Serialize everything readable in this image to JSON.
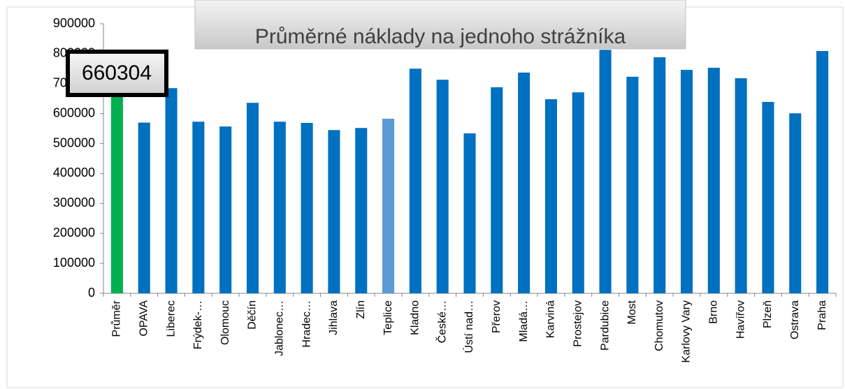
{
  "chart_data": {
    "type": "bar",
    "title": "Průměrné náklady na jednoho strážníka",
    "categories": [
      "Průměr",
      "OPAVA",
      "Liberec",
      "Frýdek-…",
      "Olomouc",
      "Děčín",
      "Jablonec…",
      "Hradec…",
      "Jihlava",
      "Zlín",
      "Teplice",
      "Kladno",
      "České…",
      "Ústí nad…",
      "Přerov",
      "Mladá…",
      "Karviná",
      "Prostejov",
      "Pardubice",
      "Most",
      "Chomutov",
      "Karlovy Vary",
      "Brno",
      "Havířov",
      "Plzeň",
      "Ostrava",
      "Praha"
    ],
    "values": [
      660304,
      570000,
      685000,
      573000,
      557000,
      636000,
      573000,
      569000,
      545000,
      552000,
      583000,
      750000,
      713000,
      534000,
      688000,
      737000,
      648000,
      671000,
      813000,
      723000,
      788000,
      746000,
      753000,
      718000,
      639000,
      601000,
      809000
    ],
    "colors": [
      "#00b050",
      "#0070c0",
      "#0070c0",
      "#0070c0",
      "#0070c0",
      "#0070c0",
      "#0070c0",
      "#0070c0",
      "#0070c0",
      "#0070c0",
      "#5b9bd5",
      "#0070c0",
      "#0070c0",
      "#0070c0",
      "#0070c0",
      "#0070c0",
      "#0070c0",
      "#0070c0",
      "#0070c0",
      "#0070c0",
      "#0070c0",
      "#0070c0",
      "#0070c0",
      "#0070c0",
      "#0070c0",
      "#0070c0",
      "#0070c0"
    ],
    "ylim": [
      0,
      900000
    ],
    "yticks": [
      0,
      100000,
      200000,
      300000,
      400000,
      500000,
      600000,
      700000,
      800000,
      900000
    ],
    "grid": false
  }
}
